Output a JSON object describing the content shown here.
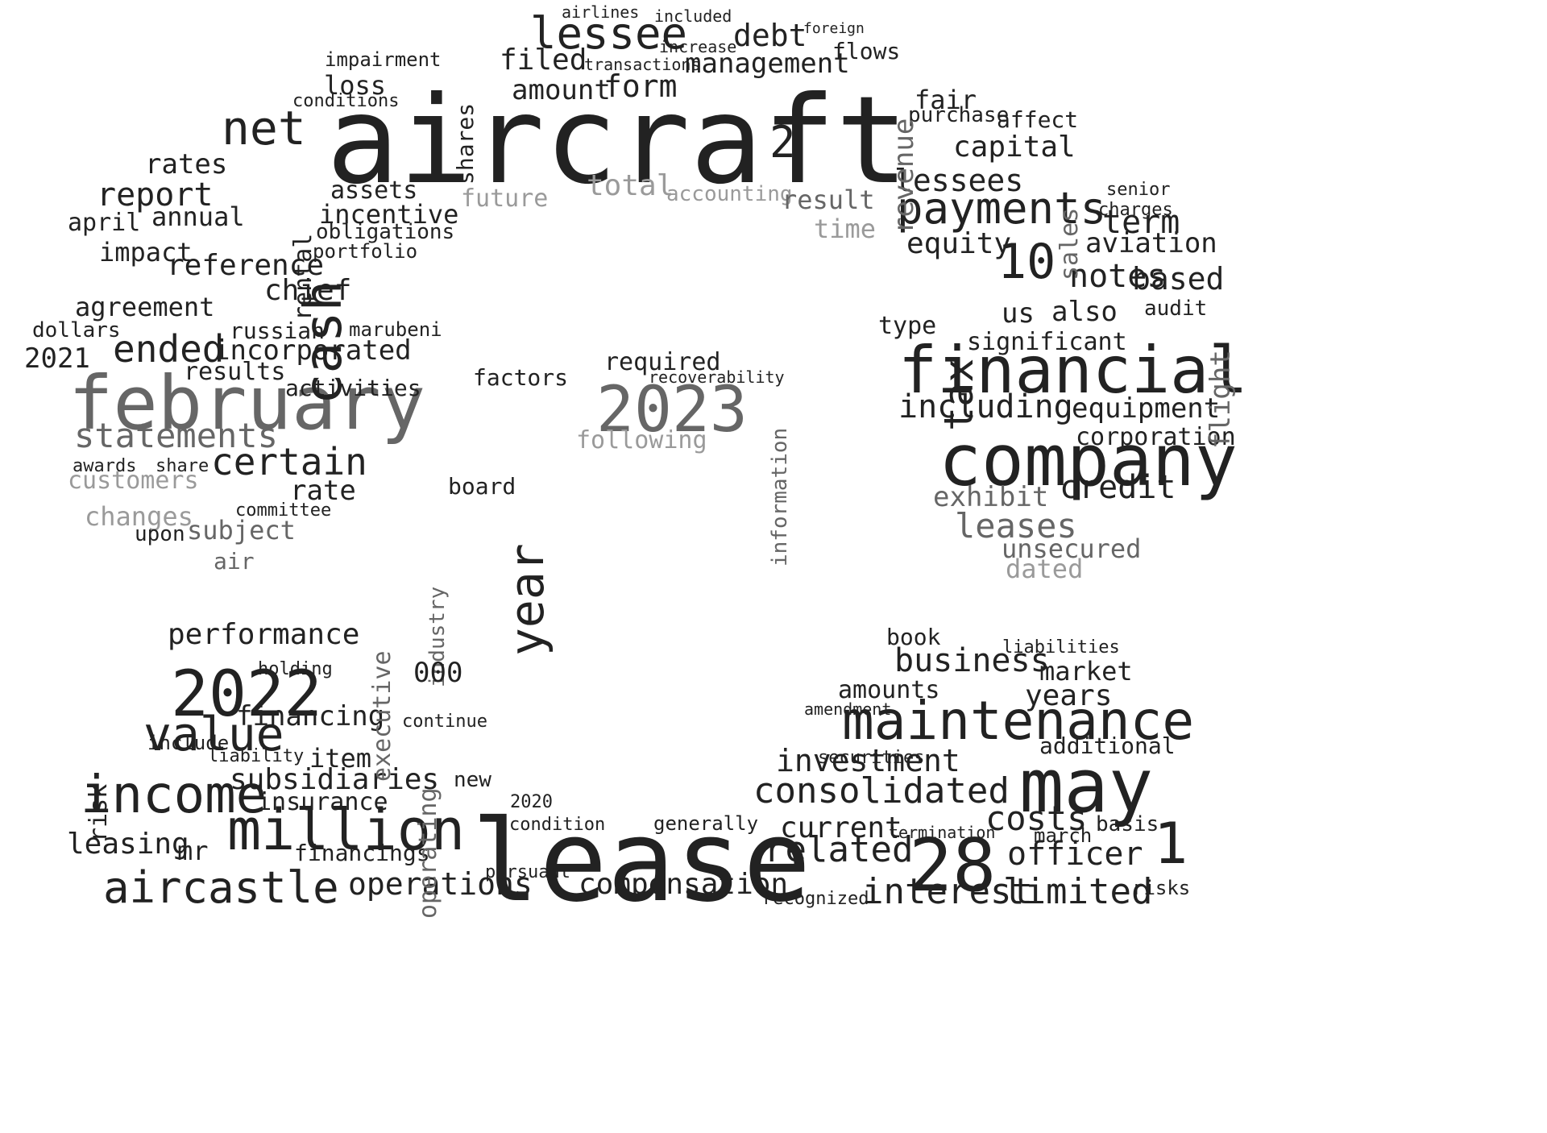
{
  "cloud": {
    "words": [
      {
        "text": "aircraft",
        "tone": "dark"
      },
      {
        "text": "lease",
        "tone": "dark"
      },
      {
        "text": "february",
        "tone": "mid"
      },
      {
        "text": "company",
        "tone": "dark"
      },
      {
        "text": "financial",
        "tone": "dark"
      },
      {
        "text": "2022",
        "tone": "dark"
      },
      {
        "text": "2023",
        "tone": "mid"
      },
      {
        "text": "may",
        "tone": "dark"
      },
      {
        "text": "28",
        "tone": "dark"
      },
      {
        "text": "maintenance",
        "tone": "dark"
      },
      {
        "text": "million",
        "tone": "dark"
      },
      {
        "text": "income",
        "tone": "dark"
      },
      {
        "text": "aircastle",
        "tone": "dark"
      },
      {
        "text": "value",
        "tone": "dark"
      },
      {
        "text": "cash",
        "tone": "dark"
      },
      {
        "text": "net",
        "tone": "dark"
      },
      {
        "text": "lessee",
        "tone": "dark"
      },
      {
        "text": "payments",
        "tone": "dark"
      },
      {
        "text": "year",
        "tone": "dark"
      },
      {
        "text": "10",
        "tone": "dark"
      },
      {
        "text": "2",
        "tone": "dark"
      },
      {
        "text": "1",
        "tone": "dark"
      },
      {
        "text": "ended",
        "tone": "dark"
      },
      {
        "text": "certain",
        "tone": "dark"
      },
      {
        "text": "statements",
        "tone": "mid"
      },
      {
        "text": "leases",
        "tone": "mid"
      },
      {
        "text": "related",
        "tone": "dark"
      },
      {
        "text": "consolidated",
        "tone": "dark"
      },
      {
        "text": "interest",
        "tone": "dark"
      },
      {
        "text": "limited",
        "tone": "dark"
      },
      {
        "text": "officer",
        "tone": "dark"
      },
      {
        "text": "costs",
        "tone": "dark"
      },
      {
        "text": "business",
        "tone": "dark"
      },
      {
        "text": "investment",
        "tone": "dark"
      },
      {
        "text": "current",
        "tone": "dark"
      },
      {
        "text": "compensation",
        "tone": "dark"
      },
      {
        "text": "operations",
        "tone": "dark"
      },
      {
        "text": "leasing",
        "tone": "dark"
      },
      {
        "text": "subsidiaries",
        "tone": "dark"
      },
      {
        "text": "performance",
        "tone": "dark"
      },
      {
        "text": "financing",
        "tone": "dark"
      },
      {
        "text": "financings",
        "tone": "dark"
      },
      {
        "text": "insurance",
        "tone": "dark"
      },
      {
        "text": "including",
        "tone": "dark"
      },
      {
        "text": "equipment",
        "tone": "dark"
      },
      {
        "text": "corporation",
        "tone": "dark"
      },
      {
        "text": "credit",
        "tone": "dark"
      },
      {
        "text": "exhibit",
        "tone": "mid"
      },
      {
        "text": "unsecured",
        "tone": "mid"
      },
      {
        "text": "dated",
        "tone": "light"
      },
      {
        "text": "tax",
        "tone": "dark"
      },
      {
        "text": "us",
        "tone": "dark"
      },
      {
        "text": "notes",
        "tone": "dark"
      },
      {
        "text": "based",
        "tone": "dark"
      },
      {
        "text": "also",
        "tone": "dark"
      },
      {
        "text": "significant",
        "tone": "dark"
      },
      {
        "text": "type",
        "tone": "dark"
      },
      {
        "text": "equity",
        "tone": "dark"
      },
      {
        "text": "term",
        "tone": "dark"
      },
      {
        "text": "aviation",
        "tone": "dark"
      },
      {
        "text": "lessees",
        "tone": "dark"
      },
      {
        "text": "capital",
        "tone": "dark"
      },
      {
        "text": "fair",
        "tone": "dark"
      },
      {
        "text": "purchase",
        "tone": "dark"
      },
      {
        "text": "affect",
        "tone": "dark"
      },
      {
        "text": "revenue",
        "tone": "mid"
      },
      {
        "text": "flows",
        "tone": "dark"
      },
      {
        "text": "foreign",
        "tone": "dark"
      },
      {
        "text": "debt",
        "tone": "dark"
      },
      {
        "text": "management",
        "tone": "dark"
      },
      {
        "text": "transactions",
        "tone": "dark"
      },
      {
        "text": "increase",
        "tone": "dark"
      },
      {
        "text": "included",
        "tone": "dark"
      },
      {
        "text": "airlines",
        "tone": "dark"
      },
      {
        "text": "filed",
        "tone": "dark"
      },
      {
        "text": "amount",
        "tone": "dark"
      },
      {
        "text": "form",
        "tone": "dark"
      },
      {
        "text": "shares",
        "tone": "dark"
      },
      {
        "text": "impairment",
        "tone": "dark"
      },
      {
        "text": "loss",
        "tone": "dark"
      },
      {
        "text": "conditions",
        "tone": "dark"
      },
      {
        "text": "rates",
        "tone": "dark"
      },
      {
        "text": "report",
        "tone": "dark"
      },
      {
        "text": "annual",
        "tone": "dark"
      },
      {
        "text": "assets",
        "tone": "dark"
      },
      {
        "text": "incentive",
        "tone": "dark"
      },
      {
        "text": "obligations",
        "tone": "dark"
      },
      {
        "text": "portfolio",
        "tone": "dark"
      },
      {
        "text": "rental",
        "tone": "dark"
      },
      {
        "text": "april",
        "tone": "dark"
      },
      {
        "text": "impact",
        "tone": "dark"
      },
      {
        "text": "reference",
        "tone": "dark"
      },
      {
        "text": "chief",
        "tone": "dark"
      },
      {
        "text": "agreement",
        "tone": "dark"
      },
      {
        "text": "2021",
        "tone": "dark"
      },
      {
        "text": "incorporated",
        "tone": "dark"
      },
      {
        "text": "russian",
        "tone": "dark"
      },
      {
        "text": "marubeni",
        "tone": "dark"
      },
      {
        "text": "results",
        "tone": "dark"
      },
      {
        "text": "activities",
        "tone": "dark"
      },
      {
        "text": "rate",
        "tone": "dark"
      },
      {
        "text": "customers",
        "tone": "light"
      },
      {
        "text": "changes",
        "tone": "light"
      },
      {
        "text": "subject",
        "tone": "mid"
      },
      {
        "text": "committee",
        "tone": "dark"
      },
      {
        "text": "air",
        "tone": "mid"
      },
      {
        "text": "upon",
        "tone": "dark"
      },
      {
        "text": "share",
        "tone": "dark"
      },
      {
        "text": "awards",
        "tone": "dark"
      },
      {
        "text": "dollars",
        "tone": "dark"
      },
      {
        "text": "total",
        "tone": "light"
      },
      {
        "text": "accounting",
        "tone": "light"
      },
      {
        "text": "future",
        "tone": "light"
      },
      {
        "text": "result",
        "tone": "mid"
      },
      {
        "text": "time",
        "tone": "light"
      },
      {
        "text": "following",
        "tone": "light"
      },
      {
        "text": "required",
        "tone": "dark"
      },
      {
        "text": "recoverability",
        "tone": "dark"
      },
      {
        "text": "factors",
        "tone": "dark"
      },
      {
        "text": "board",
        "tone": "dark"
      },
      {
        "text": "information",
        "tone": "mid"
      },
      {
        "text": "industry",
        "tone": "mid"
      },
      {
        "text": "executive",
        "tone": "mid"
      },
      {
        "text": "operating",
        "tone": "mid"
      },
      {
        "text": "000",
        "tone": "dark"
      },
      {
        "text": "continue",
        "tone": "dark"
      },
      {
        "text": "new",
        "tone": "dark"
      },
      {
        "text": "2020",
        "tone": "dark"
      },
      {
        "text": "condition",
        "tone": "dark"
      },
      {
        "text": "generally",
        "tone": "dark"
      },
      {
        "text": "pursuant",
        "tone": "dark"
      },
      {
        "text": "years",
        "tone": "dark"
      },
      {
        "text": "market",
        "tone": "dark"
      },
      {
        "text": "liabilities",
        "tone": "dark"
      },
      {
        "text": "additional",
        "tone": "dark"
      },
      {
        "text": "amounts",
        "tone": "dark"
      },
      {
        "text": "book",
        "tone": "dark"
      },
      {
        "text": "amendment",
        "tone": "dark"
      },
      {
        "text": "securities",
        "tone": "dark"
      },
      {
        "text": "termination",
        "tone": "dark"
      },
      {
        "text": "march",
        "tone": "dark"
      },
      {
        "text": "basis",
        "tone": "dark"
      },
      {
        "text": "risks",
        "tone": "dark"
      },
      {
        "text": "recognized",
        "tone": "dark"
      },
      {
        "text": "item",
        "tone": "dark"
      },
      {
        "text": "mr",
        "tone": "dark"
      },
      {
        "text": "risk",
        "tone": "dark"
      },
      {
        "text": "liability",
        "tone": "dark"
      },
      {
        "text": "include",
        "tone": "dark"
      },
      {
        "text": "holding",
        "tone": "dark"
      },
      {
        "text": "flight",
        "tone": "mid"
      },
      {
        "text": "sales",
        "tone": "mid"
      },
      {
        "text": "senior",
        "tone": "dark"
      },
      {
        "text": "charges",
        "tone": "dark"
      },
      {
        "text": "audit",
        "tone": "dark"
      }
    ]
  }
}
